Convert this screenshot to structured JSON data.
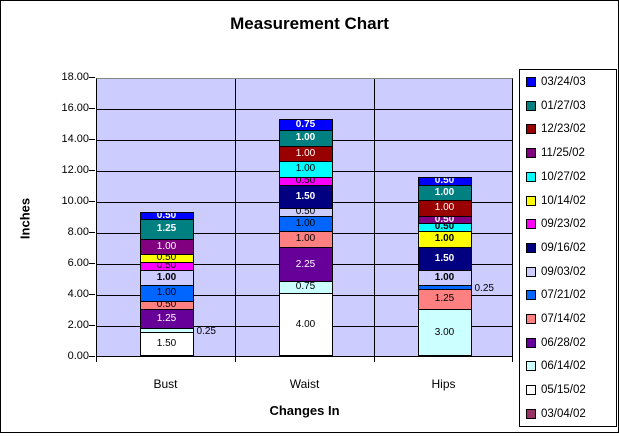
{
  "chart_data": {
    "type": "bar",
    "stacked": true,
    "title": "Measurement Chart",
    "xlabel": "Changes In",
    "ylabel": "Inches",
    "ylim": [
      0,
      18
    ],
    "ytick_step": 2,
    "ytick_labels": [
      "0.00",
      "2.00",
      "4.00",
      "6.00",
      "8.00",
      "10.00",
      "12.00",
      "14.00",
      "16.00",
      "18.00"
    ],
    "grid": true,
    "legend_position": "right",
    "plot_bg": "#CCCCFF",
    "categories": [
      "Bust",
      "Waist",
      "Hips"
    ],
    "category_totals": [
      9.25,
      15.25,
      11.5
    ],
    "series": [
      {
        "name": "03/04/02",
        "color": "#993366",
        "segments": [
          null,
          null,
          null
        ]
      },
      {
        "name": "05/15/02",
        "color": "#FFFFFF",
        "segments": [
          {
            "value": 1.5,
            "label": "1.50",
            "text": "#000000",
            "bold": false
          },
          {
            "value": 4,
            "label": "4.00",
            "text": "#000000",
            "bold": false
          },
          null
        ]
      },
      {
        "name": "06/14/02",
        "color": "#CCFFFF",
        "segments": [
          {
            "value": 0.25,
            "label": "0.25",
            "text": "#000000",
            "bold": false,
            "outside": true
          },
          {
            "value": 0.75,
            "label": "0.75",
            "text": "#000000",
            "bold": false
          },
          {
            "value": 3,
            "label": "3.00",
            "text": "#000000",
            "bold": false
          }
        ]
      },
      {
        "name": "06/28/02",
        "color": "#660099",
        "segments": [
          {
            "value": 1.25,
            "label": "1.25",
            "text": "#FFFFFF",
            "bold": false
          },
          {
            "value": 2.25,
            "label": "2.25",
            "text": "#FFFFFF",
            "bold": false
          },
          null
        ]
      },
      {
        "name": "07/14/02",
        "color": "#FF8080",
        "segments": [
          {
            "value": 0.5,
            "label": "0.50",
            "text": "#000000",
            "bold": false
          },
          {
            "value": 1,
            "label": "1.00",
            "text": "#000000",
            "bold": false
          },
          {
            "value": 1.25,
            "label": "1.25",
            "text": "#000000",
            "bold": false
          }
        ]
      },
      {
        "name": "07/21/02",
        "color": "#0066FF",
        "segments": [
          {
            "value": 1,
            "label": "1.00",
            "text": "#000000",
            "bold": false
          },
          {
            "value": 1,
            "label": "1.00",
            "text": "#000000",
            "bold": false
          },
          {
            "value": 0.25,
            "label": "0.25",
            "text": "#000000",
            "bold": false,
            "outside": true
          }
        ]
      },
      {
        "name": "09/03/02",
        "color": "#CCCCFF",
        "segments": [
          {
            "value": 1,
            "label": "1.00",
            "text": "#000000",
            "bold": true
          },
          {
            "value": 0.5,
            "label": "0.50",
            "text": "#000000",
            "bold": false
          },
          {
            "value": 1,
            "label": "1.00",
            "text": "#000000",
            "bold": true
          }
        ]
      },
      {
        "name": "09/16/02",
        "color": "#000080",
        "segments": [
          null,
          {
            "value": 1.5,
            "label": "1.50",
            "text": "#FFFFFF",
            "bold": true
          },
          {
            "value": 1.5,
            "label": "1.50",
            "text": "#FFFFFF",
            "bold": true
          }
        ]
      },
      {
        "name": "09/23/02",
        "color": "#FF00FF",
        "segments": [
          {
            "value": 0.5,
            "label": "0.50",
            "text": "#000000",
            "bold": false
          },
          {
            "value": 0.5,
            "label": "0.50",
            "text": "#000000",
            "bold": false
          },
          null
        ]
      },
      {
        "name": "10/14/02",
        "color": "#FFFF00",
        "segments": [
          {
            "value": 0.5,
            "label": "0.50",
            "text": "#000000",
            "bold": false
          },
          null,
          {
            "value": 1,
            "label": "1.00",
            "text": "#000000",
            "bold": true
          }
        ]
      },
      {
        "name": "10/27/02",
        "color": "#00FFFF",
        "segments": [
          null,
          {
            "value": 1,
            "label": "1.00",
            "text": "#000000",
            "bold": false
          },
          {
            "value": 0.5,
            "label": "0.50",
            "text": "#000000",
            "bold": true
          }
        ]
      },
      {
        "name": "11/25/02",
        "color": "#800080",
        "segments": [
          {
            "value": 1,
            "label": "1.00",
            "text": "#FFFFFF",
            "bold": false
          },
          null,
          {
            "value": 0.5,
            "label": "0.50",
            "text": "#FFFFFF",
            "bold": true
          }
        ]
      },
      {
        "name": "12/23/02",
        "color": "#990000",
        "segments": [
          null,
          {
            "value": 1,
            "label": "1.00",
            "text": "#FFFFFF",
            "bold": false
          },
          {
            "value": 1,
            "label": "1.00",
            "text": "#FFFFFF",
            "bold": false
          }
        ]
      },
      {
        "name": "01/27/03",
        "color": "#008080",
        "segments": [
          {
            "value": 1.25,
            "label": "1.25",
            "text": "#FFFFFF",
            "bold": true
          },
          {
            "value": 1,
            "label": "1.00",
            "text": "#FFFFFF",
            "bold": true
          },
          {
            "value": 1,
            "label": "1.00",
            "text": "#FFFFFF",
            "bold": true
          }
        ]
      },
      {
        "name": "03/24/03",
        "color": "#0000FF",
        "segments": [
          {
            "value": 0.5,
            "label": "0.50",
            "text": "#FFFFFF",
            "bold": true
          },
          {
            "value": 0.75,
            "label": "0.75",
            "text": "#FFFFFF",
            "bold": true
          },
          {
            "value": 0.5,
            "label": "0.50",
            "text": "#FFFFFF",
            "bold": true
          }
        ]
      }
    ],
    "legend_order": "latest-first"
  }
}
